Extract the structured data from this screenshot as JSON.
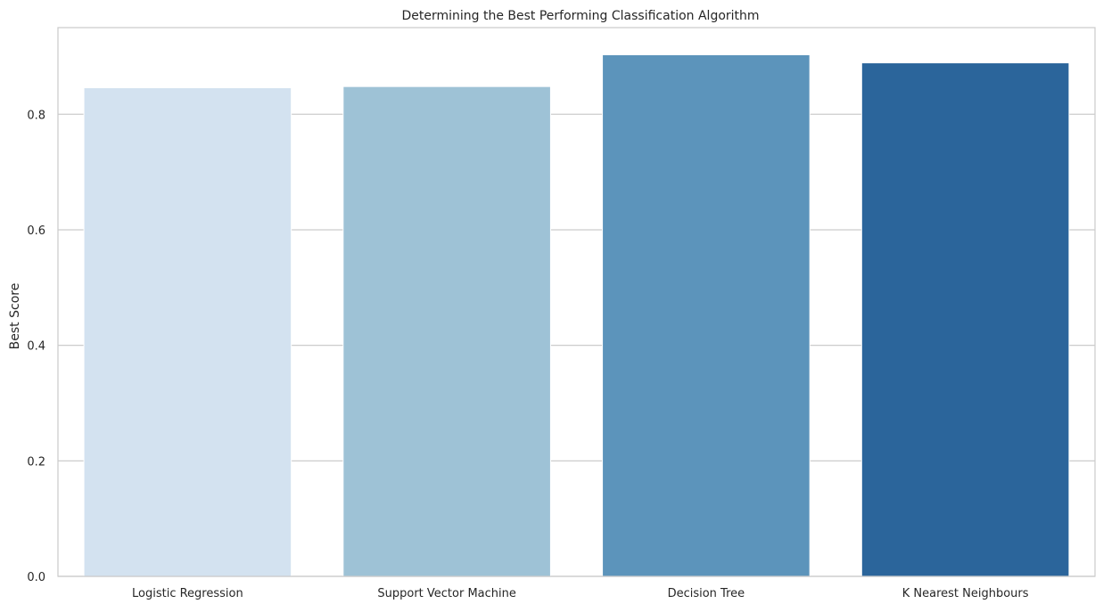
{
  "chart_data": {
    "type": "bar",
    "title": "Determining the Best Performing Classification Algorithm",
    "xlabel": "",
    "ylabel": "Best Score",
    "categories": [
      "Logistic Regression",
      "Support Vector Machine",
      "Decision Tree",
      "K Nearest Neighbours"
    ],
    "values": [
      0.846,
      0.848,
      0.903,
      0.889
    ],
    "colors": [
      "#d3e2f0",
      "#9ec2d6",
      "#5c94bb",
      "#2b659b"
    ],
    "ylim": [
      0,
      0.95
    ],
    "yticks": [
      0.0,
      0.2,
      0.4,
      0.6,
      0.8
    ],
    "ytick_labels": [
      "0.0",
      "0.2",
      "0.4",
      "0.6",
      "0.8"
    ],
    "grid": "horizontal",
    "legend": "none"
  }
}
